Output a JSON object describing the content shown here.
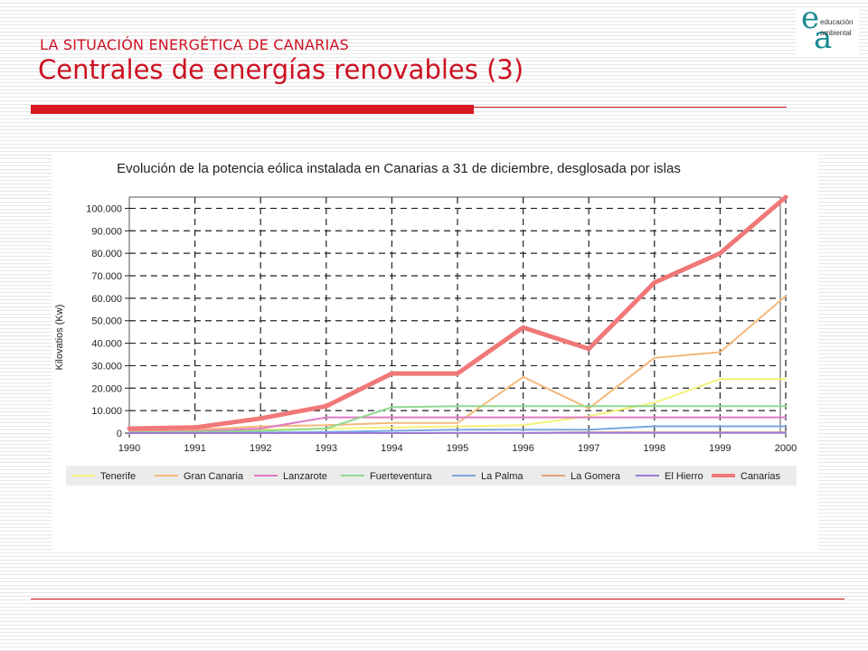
{
  "slide": {
    "supertitle": "LA SITUACIÓN ENERGÉTICA DE CANARIAS",
    "title": "Centrales de energías renovables (3)",
    "logo": {
      "line1": "educación",
      "line2": "ambiental",
      "letter1": "e",
      "letter2": "a",
      "color": "#1a8a94"
    },
    "accent_color": "#d71920"
  },
  "chart_data": {
    "type": "line",
    "title": "Evolución de la potencia eólica instalada en Canarias a 31 de diciembre, desglosada por islas",
    "xlabel": "",
    "ylabel": "Kilovatios (Kw)",
    "x": [
      "1990",
      "1991",
      "1992",
      "1993",
      "1994",
      "1995",
      "1996",
      "1997",
      "1998",
      "1999",
      "2000"
    ],
    "x_tick_labels": [
      "1990",
      "1991",
      "1992",
      "1993",
      "1994",
      "1995",
      "1996",
      "1997",
      "1998",
      "1999",
      "2000"
    ],
    "y_tick_labels": [
      "0",
      "10.000",
      "20.000",
      "30.000",
      "40.000",
      "50.000",
      "60.000",
      "70.000",
      "80.000",
      "90.000",
      "100.000"
    ],
    "ylim": [
      0,
      105000
    ],
    "grid": true,
    "legend_position": "bottom",
    "series": [
      {
        "name": "Tenerife",
        "color": "#f4f27a",
        "width": 2,
        "values": [
          1000,
          1000,
          1500,
          2000,
          2500,
          3000,
          3500,
          7500,
          13500,
          24000,
          24000
        ]
      },
      {
        "name": "Gran Canaria",
        "color": "#f5b87a",
        "width": 2,
        "values": [
          1000,
          1500,
          3000,
          3500,
          4500,
          4500,
          25000,
          11000,
          33500,
          36000,
          61000
        ]
      },
      {
        "name": "Lanzarote",
        "color": "#e07ac4",
        "width": 2,
        "values": [
          500,
          800,
          2000,
          7000,
          7000,
          7000,
          7000,
          7000,
          7000,
          7000,
          7000
        ]
      },
      {
        "name": "Fuerteventura",
        "color": "#8fd98f",
        "width": 2,
        "values": [
          300,
          500,
          1000,
          2000,
          11500,
          12000,
          12000,
          12000,
          12000,
          12000,
          12000
        ]
      },
      {
        "name": "La Palma",
        "color": "#7aa6e0",
        "width": 2,
        "values": [
          0,
          0,
          200,
          500,
          1000,
          1500,
          1500,
          1500,
          3000,
          3000,
          3000
        ]
      },
      {
        "name": "La Gomera",
        "color": "#e0a07a",
        "width": 2,
        "values": [
          0,
          0,
          0,
          0,
          0,
          0,
          0,
          360,
          360,
          360,
          360
        ]
      },
      {
        "name": "El Hierro",
        "color": "#9a7ad4",
        "width": 2,
        "values": [
          0,
          0,
          0,
          0,
          0,
          100,
          100,
          100,
          100,
          100,
          100
        ]
      },
      {
        "name": "Canarias",
        "color": "#f07878",
        "width": 5,
        "values": [
          2000,
          2500,
          6500,
          12000,
          26500,
          26500,
          47000,
          37500,
          67000,
          80000,
          105000
        ]
      }
    ]
  }
}
